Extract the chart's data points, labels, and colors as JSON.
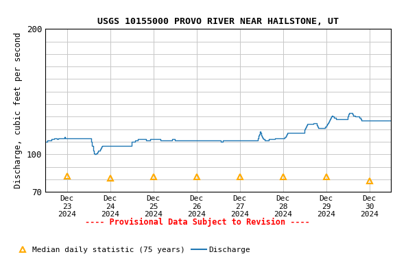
{
  "title": "USGS 10155000 PROVO RIVER NEAR HAILSTONE, UT",
  "ylabel": "Discharge, cubic feet per second",
  "ylim": [
    70,
    200
  ],
  "background_color": "#ffffff",
  "grid_color": "#c8c8c8",
  "discharge_color": "#1f77b4",
  "median_color": "#ffaa00",
  "provisional_text": "---- Provisional Data Subject to Revision ----",
  "provisional_color": "#ff0000",
  "legend_triangle_label": "Median daily statistic (75 years)",
  "legend_line_label": "Discharge",
  "discharge_data": [
    [
      0.0,
      110
    ],
    [
      0.017,
      110
    ],
    [
      0.033,
      110
    ],
    [
      0.05,
      111
    ],
    [
      0.067,
      111
    ],
    [
      0.083,
      111
    ],
    [
      0.1,
      111
    ],
    [
      0.117,
      111
    ],
    [
      0.133,
      112
    ],
    [
      0.15,
      112
    ],
    [
      0.167,
      112
    ],
    [
      0.183,
      112
    ],
    [
      0.2,
      113
    ],
    [
      0.217,
      113
    ],
    [
      0.233,
      113
    ],
    [
      0.25,
      113
    ],
    [
      0.267,
      112
    ],
    [
      0.283,
      112
    ],
    [
      0.3,
      113
    ],
    [
      0.317,
      113
    ],
    [
      0.333,
      113
    ],
    [
      0.35,
      113
    ],
    [
      0.367,
      113
    ],
    [
      0.383,
      113
    ],
    [
      0.4,
      113
    ],
    [
      0.417,
      113
    ],
    [
      0.433,
      114
    ],
    [
      0.45,
      113
    ],
    [
      0.467,
      113
    ],
    [
      0.483,
      113
    ],
    [
      0.5,
      113
    ],
    [
      0.517,
      113
    ],
    [
      0.533,
      113
    ],
    [
      0.55,
      113
    ],
    [
      0.567,
      113
    ],
    [
      0.583,
      113
    ],
    [
      0.6,
      113
    ],
    [
      0.617,
      113
    ],
    [
      0.633,
      113
    ],
    [
      0.65,
      113
    ],
    [
      0.667,
      113
    ],
    [
      0.683,
      113
    ],
    [
      0.7,
      113
    ],
    [
      0.717,
      113
    ],
    [
      0.733,
      113
    ],
    [
      0.75,
      113
    ],
    [
      0.767,
      113
    ],
    [
      0.783,
      113
    ],
    [
      0.8,
      113
    ],
    [
      0.817,
      113
    ],
    [
      0.833,
      113
    ],
    [
      0.85,
      113
    ],
    [
      0.867,
      113
    ],
    [
      0.883,
      113
    ],
    [
      0.9,
      113
    ],
    [
      0.917,
      113
    ],
    [
      0.933,
      113
    ],
    [
      0.95,
      113
    ],
    [
      0.967,
      113
    ],
    [
      0.983,
      113
    ],
    [
      1.0,
      113
    ],
    [
      1.017,
      113
    ],
    [
      1.033,
      113
    ],
    [
      1.05,
      113
    ],
    [
      1.067,
      110
    ],
    [
      1.083,
      107
    ],
    [
      1.1,
      103
    ],
    [
      1.117,
      101
    ],
    [
      1.133,
      100
    ],
    [
      1.15,
      100
    ],
    [
      1.167,
      101
    ],
    [
      1.183,
      101
    ],
    [
      1.2,
      102
    ],
    [
      1.217,
      103
    ],
    [
      1.233,
      103
    ],
    [
      1.25,
      103
    ],
    [
      1.267,
      104
    ],
    [
      1.283,
      105
    ],
    [
      1.3,
      106
    ],
    [
      1.317,
      107
    ],
    [
      1.333,
      107
    ],
    [
      1.35,
      107
    ],
    [
      1.367,
      107
    ],
    [
      1.383,
      107
    ],
    [
      1.4,
      107
    ],
    [
      1.417,
      107
    ],
    [
      1.433,
      107
    ],
    [
      1.45,
      107
    ],
    [
      1.467,
      107
    ],
    [
      1.483,
      107
    ],
    [
      1.5,
      107
    ],
    [
      1.517,
      107
    ],
    [
      1.533,
      107
    ],
    [
      1.55,
      107
    ],
    [
      1.567,
      107
    ],
    [
      1.583,
      107
    ],
    [
      1.6,
      107
    ],
    [
      1.617,
      107
    ],
    [
      1.633,
      107
    ],
    [
      1.65,
      107
    ],
    [
      1.667,
      107
    ],
    [
      1.683,
      107
    ],
    [
      1.7,
      107
    ],
    [
      1.717,
      107
    ],
    [
      1.733,
      107
    ],
    [
      1.75,
      107
    ],
    [
      1.767,
      107
    ],
    [
      1.783,
      107
    ],
    [
      1.8,
      107
    ],
    [
      1.817,
      107
    ],
    [
      1.833,
      107
    ],
    [
      1.85,
      107
    ],
    [
      1.867,
      107
    ],
    [
      1.883,
      107
    ],
    [
      1.9,
      107
    ],
    [
      1.917,
      107
    ],
    [
      1.933,
      107
    ],
    [
      1.95,
      107
    ],
    [
      1.967,
      107
    ],
    [
      1.983,
      107
    ],
    [
      2.0,
      110
    ],
    [
      2.017,
      110
    ],
    [
      2.033,
      110
    ],
    [
      2.05,
      110
    ],
    [
      2.067,
      110
    ],
    [
      2.083,
      111
    ],
    [
      2.1,
      111
    ],
    [
      2.117,
      111
    ],
    [
      2.133,
      112
    ],
    [
      2.15,
      112
    ],
    [
      2.167,
      112
    ],
    [
      2.183,
      112
    ],
    [
      2.2,
      112
    ],
    [
      2.217,
      112
    ],
    [
      2.233,
      112
    ],
    [
      2.25,
      112
    ],
    [
      2.267,
      112
    ],
    [
      2.283,
      112
    ],
    [
      2.3,
      112
    ],
    [
      2.317,
      112
    ],
    [
      2.333,
      111
    ],
    [
      2.35,
      111
    ],
    [
      2.367,
      111
    ],
    [
      2.383,
      111
    ],
    [
      2.4,
      111
    ],
    [
      2.417,
      112
    ],
    [
      2.433,
      112
    ],
    [
      2.45,
      112
    ],
    [
      2.467,
      112
    ],
    [
      2.483,
      112
    ],
    [
      2.5,
      112
    ],
    [
      2.517,
      112
    ],
    [
      2.533,
      112
    ],
    [
      2.55,
      112
    ],
    [
      2.567,
      112
    ],
    [
      2.583,
      112
    ],
    [
      2.6,
      112
    ],
    [
      2.617,
      112
    ],
    [
      2.633,
      112
    ],
    [
      2.65,
      112
    ],
    [
      2.667,
      111
    ],
    [
      2.683,
      111
    ],
    [
      2.7,
      111
    ],
    [
      2.717,
      111
    ],
    [
      2.733,
      111
    ],
    [
      2.75,
      111
    ],
    [
      2.767,
      111
    ],
    [
      2.783,
      111
    ],
    [
      2.8,
      111
    ],
    [
      2.817,
      111
    ],
    [
      2.833,
      111
    ],
    [
      2.85,
      111
    ],
    [
      2.867,
      111
    ],
    [
      2.883,
      111
    ],
    [
      2.9,
      111
    ],
    [
      2.917,
      111
    ],
    [
      2.933,
      112
    ],
    [
      2.95,
      112
    ],
    [
      2.967,
      112
    ],
    [
      2.983,
      112
    ],
    [
      3.0,
      111
    ],
    [
      3.017,
      111
    ],
    [
      3.033,
      111
    ],
    [
      3.05,
      111
    ],
    [
      3.067,
      111
    ],
    [
      3.083,
      111
    ],
    [
      3.1,
      111
    ],
    [
      3.117,
      111
    ],
    [
      3.133,
      111
    ],
    [
      3.15,
      111
    ],
    [
      3.167,
      111
    ],
    [
      3.183,
      111
    ],
    [
      3.2,
      111
    ],
    [
      3.217,
      111
    ],
    [
      3.233,
      111
    ],
    [
      3.25,
      111
    ],
    [
      3.267,
      111
    ],
    [
      3.283,
      111
    ],
    [
      3.3,
      111
    ],
    [
      3.317,
      111
    ],
    [
      3.333,
      111
    ],
    [
      3.35,
      111
    ],
    [
      3.367,
      111
    ],
    [
      3.383,
      111
    ],
    [
      3.4,
      111
    ],
    [
      3.417,
      111
    ],
    [
      3.433,
      111
    ],
    [
      3.45,
      111
    ],
    [
      3.467,
      111
    ],
    [
      3.483,
      111
    ],
    [
      3.5,
      111
    ],
    [
      3.517,
      111
    ],
    [
      3.533,
      111
    ],
    [
      3.55,
      111
    ],
    [
      3.567,
      111
    ],
    [
      3.583,
      111
    ],
    [
      3.6,
      111
    ],
    [
      3.617,
      111
    ],
    [
      3.633,
      111
    ],
    [
      3.65,
      111
    ],
    [
      3.667,
      111
    ],
    [
      3.683,
      111
    ],
    [
      3.7,
      111
    ],
    [
      3.717,
      111
    ],
    [
      3.733,
      111
    ],
    [
      3.75,
      111
    ],
    [
      3.767,
      111
    ],
    [
      3.783,
      111
    ],
    [
      3.8,
      111
    ],
    [
      3.817,
      111
    ],
    [
      3.833,
      111
    ],
    [
      3.85,
      111
    ],
    [
      3.867,
      111
    ],
    [
      3.883,
      111
    ],
    [
      3.9,
      111
    ],
    [
      3.917,
      111
    ],
    [
      3.933,
      111
    ],
    [
      3.95,
      111
    ],
    [
      3.967,
      111
    ],
    [
      3.983,
      111
    ],
    [
      4.0,
      111
    ],
    [
      4.017,
      111
    ],
    [
      4.033,
      111
    ],
    [
      4.05,
      111
    ],
    [
      4.067,
      110
    ],
    [
      4.083,
      110
    ],
    [
      4.1,
      111
    ],
    [
      4.117,
      111
    ],
    [
      4.133,
      111
    ],
    [
      4.15,
      111
    ],
    [
      4.167,
      111
    ],
    [
      4.183,
      111
    ],
    [
      4.2,
      111
    ],
    [
      4.217,
      111
    ],
    [
      4.233,
      111
    ],
    [
      4.25,
      111
    ],
    [
      4.267,
      111
    ],
    [
      4.283,
      111
    ],
    [
      4.3,
      111
    ],
    [
      4.317,
      111
    ],
    [
      4.333,
      111
    ],
    [
      4.35,
      111
    ],
    [
      4.367,
      111
    ],
    [
      4.383,
      111
    ],
    [
      4.4,
      111
    ],
    [
      4.417,
      111
    ],
    [
      4.433,
      111
    ],
    [
      4.45,
      111
    ],
    [
      4.467,
      111
    ],
    [
      4.483,
      111
    ],
    [
      4.5,
      111
    ],
    [
      4.517,
      111
    ],
    [
      4.533,
      111
    ],
    [
      4.55,
      111
    ],
    [
      4.567,
      111
    ],
    [
      4.583,
      111
    ],
    [
      4.6,
      111
    ],
    [
      4.617,
      111
    ],
    [
      4.633,
      111
    ],
    [
      4.65,
      111
    ],
    [
      4.667,
      111
    ],
    [
      4.683,
      111
    ],
    [
      4.7,
      111
    ],
    [
      4.717,
      111
    ],
    [
      4.733,
      111
    ],
    [
      4.75,
      111
    ],
    [
      4.767,
      111
    ],
    [
      4.783,
      111
    ],
    [
      4.8,
      111
    ],
    [
      4.817,
      111
    ],
    [
      4.833,
      111
    ],
    [
      4.85,
      111
    ],
    [
      4.867,
      111
    ],
    [
      4.883,
      111
    ],
    [
      4.9,
      111
    ],
    [
      4.917,
      113
    ],
    [
      4.933,
      115
    ],
    [
      4.95,
      116
    ],
    [
      4.967,
      118
    ],
    [
      4.983,
      117
    ],
    [
      5.0,
      115
    ],
    [
      5.017,
      114
    ],
    [
      5.033,
      113
    ],
    [
      5.05,
      112
    ],
    [
      5.067,
      112
    ],
    [
      5.083,
      111
    ],
    [
      5.1,
      111
    ],
    [
      5.117,
      111
    ],
    [
      5.133,
      111
    ],
    [
      5.15,
      111
    ],
    [
      5.167,
      112
    ],
    [
      5.183,
      112
    ],
    [
      5.2,
      112
    ],
    [
      5.217,
      112
    ],
    [
      5.233,
      112
    ],
    [
      5.25,
      112
    ],
    [
      5.267,
      112
    ],
    [
      5.283,
      112
    ],
    [
      5.3,
      112
    ],
    [
      5.317,
      113
    ],
    [
      5.333,
      113
    ],
    [
      5.35,
      113
    ],
    [
      5.367,
      113
    ],
    [
      5.383,
      113
    ],
    [
      5.4,
      113
    ],
    [
      5.417,
      113
    ],
    [
      5.433,
      113
    ],
    [
      5.45,
      113
    ],
    [
      5.467,
      113
    ],
    [
      5.483,
      113
    ],
    [
      5.5,
      113
    ],
    [
      5.517,
      113
    ],
    [
      5.533,
      114
    ],
    [
      5.55,
      114
    ],
    [
      5.567,
      115
    ],
    [
      5.583,
      116
    ],
    [
      5.6,
      117
    ],
    [
      5.617,
      117
    ],
    [
      5.633,
      117
    ],
    [
      5.65,
      117
    ],
    [
      5.667,
      117
    ],
    [
      5.683,
      117
    ],
    [
      5.7,
      117
    ],
    [
      5.717,
      117
    ],
    [
      5.733,
      117
    ],
    [
      5.75,
      117
    ],
    [
      5.767,
      117
    ],
    [
      5.783,
      117
    ],
    [
      5.8,
      117
    ],
    [
      5.817,
      117
    ],
    [
      5.833,
      117
    ],
    [
      5.85,
      117
    ],
    [
      5.867,
      117
    ],
    [
      5.883,
      117
    ],
    [
      5.9,
      117
    ],
    [
      5.917,
      117
    ],
    [
      5.933,
      117
    ],
    [
      5.95,
      117
    ],
    [
      5.967,
      117
    ],
    [
      5.983,
      117
    ],
    [
      6.0,
      120
    ],
    [
      6.017,
      121
    ],
    [
      6.033,
      122
    ],
    [
      6.05,
      123
    ],
    [
      6.067,
      124
    ],
    [
      6.083,
      124
    ],
    [
      6.1,
      124
    ],
    [
      6.117,
      124
    ],
    [
      6.133,
      124
    ],
    [
      6.15,
      124
    ],
    [
      6.167,
      124
    ],
    [
      6.183,
      124
    ],
    [
      6.2,
      125
    ],
    [
      6.217,
      125
    ],
    [
      6.233,
      125
    ],
    [
      6.25,
      125
    ],
    [
      6.267,
      125
    ],
    [
      6.283,
      123
    ],
    [
      6.3,
      122
    ],
    [
      6.317,
      121
    ],
    [
      6.333,
      121
    ],
    [
      6.35,
      121
    ],
    [
      6.367,
      121
    ],
    [
      6.383,
      121
    ],
    [
      6.4,
      121
    ],
    [
      6.417,
      121
    ],
    [
      6.433,
      121
    ],
    [
      6.45,
      121
    ],
    [
      6.467,
      122
    ],
    [
      6.483,
      122
    ],
    [
      6.5,
      123
    ],
    [
      6.517,
      124
    ],
    [
      6.533,
      125
    ],
    [
      6.55,
      126
    ],
    [
      6.567,
      127
    ],
    [
      6.583,
      128
    ],
    [
      6.6,
      129
    ],
    [
      6.617,
      130
    ],
    [
      6.633,
      131
    ],
    [
      6.65,
      130
    ],
    [
      6.667,
      130
    ],
    [
      6.683,
      129
    ],
    [
      6.7,
      129
    ],
    [
      6.717,
      129
    ],
    [
      6.733,
      128
    ],
    [
      6.75,
      128
    ],
    [
      6.767,
      128
    ],
    [
      6.783,
      128
    ],
    [
      6.8,
      128
    ],
    [
      6.817,
      128
    ],
    [
      6.833,
      128
    ],
    [
      6.85,
      128
    ],
    [
      6.867,
      128
    ],
    [
      6.883,
      128
    ],
    [
      6.9,
      128
    ],
    [
      6.917,
      128
    ],
    [
      6.933,
      128
    ],
    [
      6.95,
      128
    ],
    [
      6.967,
      128
    ],
    [
      6.983,
      128
    ],
    [
      7.0,
      130
    ],
    [
      7.017,
      132
    ],
    [
      7.033,
      133
    ],
    [
      7.05,
      133
    ],
    [
      7.067,
      133
    ],
    [
      7.083,
      133
    ],
    [
      7.1,
      132
    ],
    [
      7.117,
      131
    ],
    [
      7.133,
      131
    ],
    [
      7.15,
      131
    ],
    [
      7.167,
      130
    ],
    [
      7.183,
      130
    ],
    [
      7.2,
      130
    ],
    [
      7.217,
      130
    ],
    [
      7.233,
      130
    ],
    [
      7.25,
      130
    ],
    [
      7.267,
      129
    ],
    [
      7.283,
      129
    ],
    [
      7.3,
      128
    ],
    [
      7.317,
      127
    ],
    [
      7.333,
      127
    ],
    [
      7.35,
      127
    ],
    [
      7.367,
      127
    ],
    [
      7.383,
      127
    ],
    [
      7.4,
      127
    ],
    [
      7.417,
      127
    ],
    [
      7.433,
      127
    ],
    [
      7.45,
      127
    ],
    [
      7.467,
      127
    ],
    [
      7.483,
      127
    ],
    [
      7.5,
      127
    ],
    [
      7.517,
      127
    ],
    [
      7.533,
      127
    ],
    [
      7.55,
      127
    ],
    [
      7.567,
      127
    ],
    [
      7.583,
      127
    ],
    [
      7.6,
      127
    ],
    [
      7.617,
      127
    ],
    [
      7.633,
      127
    ],
    [
      7.65,
      127
    ],
    [
      7.667,
      127
    ],
    [
      7.683,
      127
    ],
    [
      7.7,
      127
    ],
    [
      7.717,
      127
    ],
    [
      7.733,
      127
    ],
    [
      7.75,
      127
    ],
    [
      7.767,
      127
    ],
    [
      7.783,
      127
    ],
    [
      7.8,
      127
    ],
    [
      7.817,
      127
    ],
    [
      7.833,
      127
    ],
    [
      7.85,
      127
    ],
    [
      7.867,
      127
    ],
    [
      7.883,
      127
    ],
    [
      7.9,
      127
    ],
    [
      7.917,
      127
    ],
    [
      7.933,
      127
    ],
    [
      7.95,
      127
    ],
    [
      7.967,
      127
    ],
    [
      7.983,
      127
    ],
    [
      8.0,
      127
    ]
  ],
  "median_data": [
    [
      0.5,
      83
    ],
    [
      1.5,
      81
    ],
    [
      2.5,
      82
    ],
    [
      3.5,
      82
    ],
    [
      4.5,
      82
    ],
    [
      5.5,
      82
    ],
    [
      6.5,
      82
    ],
    [
      7.5,
      79
    ]
  ],
  "x_tick_positions": [
    0.5,
    1.5,
    2.5,
    3.5,
    4.5,
    5.5,
    6.5,
    7.5
  ],
  "x_tick_labels": [
    "Dec\n23\n2024",
    "Dec\n24\n2024",
    "Dec\n25\n2024",
    "Dec\n26\n2024",
    "Dec\n27\n2024",
    "Dec\n28\n2024",
    "Dec\n29\n2024",
    "Dec\n30\n2024"
  ],
  "xlim": [
    0,
    8.0
  ]
}
